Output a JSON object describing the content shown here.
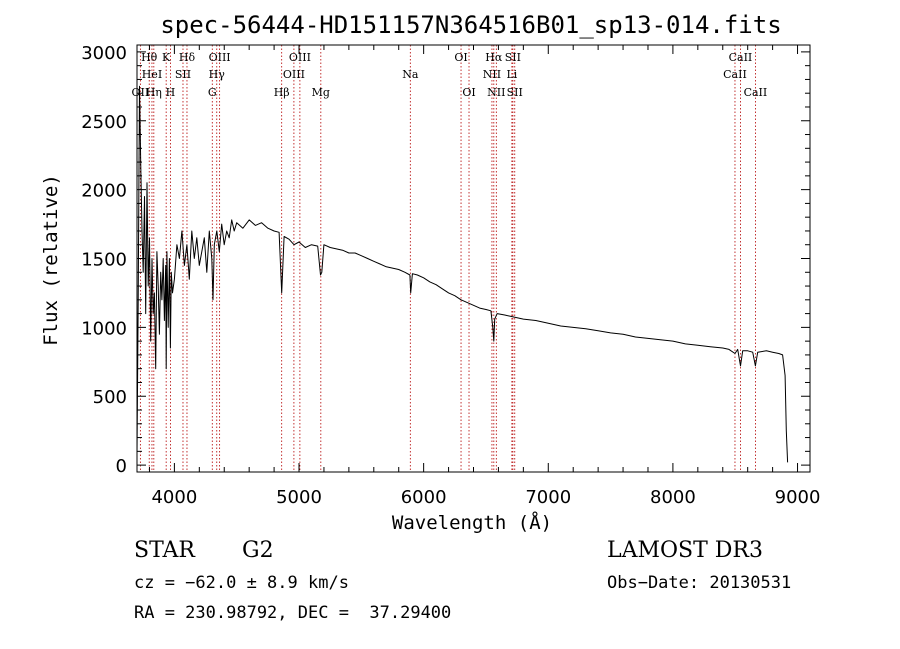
{
  "chart_data": {
    "type": "line",
    "title": "spec-56444-HD151157N364516B01_sp13-014.fits",
    "xlabel": "Wavelength (Å)",
    "ylabel": "Flux (relative)",
    "xlim": [
      3700,
      9100
    ],
    "ylim": [
      -50,
      3050
    ],
    "x_ticks": [
      4000,
      5000,
      6000,
      7000,
      8000,
      9000
    ],
    "y_ticks": [
      0,
      500,
      1000,
      1500,
      2000,
      2500,
      3000
    ],
    "series": [
      {
        "name": "spectrum",
        "x": [
          3700,
          3710,
          3720,
          3730,
          3740,
          3750,
          3760,
          3770,
          3780,
          3790,
          3800,
          3810,
          3820,
          3830,
          3840,
          3850,
          3860,
          3870,
          3880,
          3890,
          3900,
          3910,
          3920,
          3930,
          3934,
          3940,
          3950,
          3960,
          3968,
          3975,
          3985,
          4000,
          4020,
          4040,
          4060,
          4080,
          4100,
          4120,
          4140,
          4160,
          4180,
          4200,
          4220,
          4240,
          4260,
          4280,
          4300,
          4310,
          4320,
          4340,
          4360,
          4380,
          4400,
          4420,
          4440,
          4460,
          4480,
          4500,
          4550,
          4600,
          4650,
          4700,
          4750,
          4800,
          4840,
          4861,
          4880,
          4920,
          4960,
          5000,
          5050,
          5100,
          5150,
          5172,
          5183,
          5200,
          5250,
          5300,
          5350,
          5400,
          5450,
          5500,
          5550,
          5600,
          5650,
          5700,
          5750,
          5800,
          5850,
          5890,
          5896,
          5910,
          5950,
          6000,
          6050,
          6100,
          6150,
          6200,
          6250,
          6300,
          6350,
          6400,
          6450,
          6500,
          6540,
          6555,
          6563,
          6570,
          6590,
          6650,
          6700,
          6750,
          6800,
          6900,
          7000,
          7100,
          7200,
          7300,
          7400,
          7500,
          7600,
          7700,
          7800,
          7900,
          8000,
          8100,
          8200,
          8300,
          8400,
          8450,
          8498,
          8520,
          8542,
          8560,
          8600,
          8640,
          8662,
          8680,
          8750,
          8800,
          8850,
          8880,
          8900,
          8910,
          8920
        ],
        "y": [
          80,
          1200,
          2750,
          2200,
          1700,
          1400,
          1950,
          1100,
          2050,
          1300,
          1650,
          900,
          1500,
          1100,
          1250,
          700,
          1550,
          1300,
          950,
          1400,
          1200,
          1500,
          1050,
          1450,
          700,
          1550,
          1000,
          1500,
          850,
          1400,
          1250,
          1350,
          1600,
          1500,
          1700,
          1450,
          1600,
          1350,
          1700,
          1500,
          1650,
          1450,
          1550,
          1650,
          1400,
          1700,
          1500,
          1200,
          1600,
          1700,
          1550,
          1750,
          1600,
          1700,
          1650,
          1780,
          1700,
          1760,
          1720,
          1780,
          1740,
          1760,
          1720,
          1700,
          1690,
          1250,
          1660,
          1640,
          1600,
          1620,
          1580,
          1600,
          1590,
          1380,
          1400,
          1600,
          1580,
          1570,
          1560,
          1540,
          1540,
          1520,
          1500,
          1480,
          1460,
          1440,
          1430,
          1420,
          1400,
          1380,
          1250,
          1390,
          1380,
          1360,
          1330,
          1310,
          1280,
          1250,
          1230,
          1200,
          1180,
          1160,
          1140,
          1130,
          1120,
          1000,
          900,
          1060,
          1100,
          1090,
          1080,
          1070,
          1060,
          1050,
          1030,
          1010,
          1000,
          990,
          975,
          960,
          950,
          930,
          920,
          910,
          900,
          880,
          870,
          860,
          850,
          840,
          810,
          840,
          720,
          830,
          830,
          820,
          720,
          820,
          830,
          820,
          810,
          800,
          650,
          250,
          20
        ]
      }
    ],
    "line_labels": [
      {
        "label": "OII",
        "x": 3727,
        "row": 3
      },
      {
        "label": "Hθ",
        "x": 3798,
        "row": 1
      },
      {
        "label": "HeI",
        "x": 3820,
        "row": 2
      },
      {
        "label": "Hη",
        "x": 3835,
        "row": 3
      },
      {
        "label": "K",
        "x": 3934,
        "row": 1
      },
      {
        "label": "SII",
        "x": 4069,
        "row": 2
      },
      {
        "label": "H",
        "x": 3968,
        "row": 3
      },
      {
        "label": "Hδ",
        "x": 4101,
        "row": 1
      },
      {
        "label": "OIII",
        "x": 4363,
        "row": 1
      },
      {
        "label": "Hγ",
        "x": 4340,
        "row": 2
      },
      {
        "label": "G",
        "x": 4304,
        "row": 3
      },
      {
        "label": "Hβ",
        "x": 4861,
        "row": 3
      },
      {
        "label": "OIII",
        "x": 5007,
        "row": 1
      },
      {
        "label": "OIII",
        "x": 4959,
        "row": 2
      },
      {
        "label": "Mg",
        "x": 5175,
        "row": 3
      },
      {
        "label": "Na",
        "x": 5893,
        "row": 2
      },
      {
        "label": "OI",
        "x": 6300,
        "row": 1
      },
      {
        "label": "OI",
        "x": 6364,
        "row": 3
      },
      {
        "label": "Hα",
        "x": 6563,
        "row": 1
      },
      {
        "label": "SII",
        "x": 6716,
        "row": 1
      },
      {
        "label": "NII",
        "x": 6548,
        "row": 2
      },
      {
        "label": "Li",
        "x": 6708,
        "row": 2
      },
      {
        "label": "NII",
        "x": 6583,
        "row": 3
      },
      {
        "label": "SII",
        "x": 6731,
        "row": 3
      },
      {
        "label": "CaII",
        "x": 8542,
        "row": 1
      },
      {
        "label": "CaII",
        "x": 8498,
        "row": 2
      },
      {
        "label": "CaII",
        "x": 8662,
        "row": 3
      }
    ]
  },
  "info": {
    "object_class": "STAR",
    "subclass": "G2",
    "survey": "LAMOST DR3",
    "redshift": "cz = −62.0 ± 8.9 km/s",
    "obs_date": "Obs−Date: 20130531",
    "coords": "RA = 230.98792, DEC =  37.29400"
  },
  "colors": {
    "spectrum": "#000000",
    "line_marker": "#b30000",
    "axis": "#000000"
  }
}
